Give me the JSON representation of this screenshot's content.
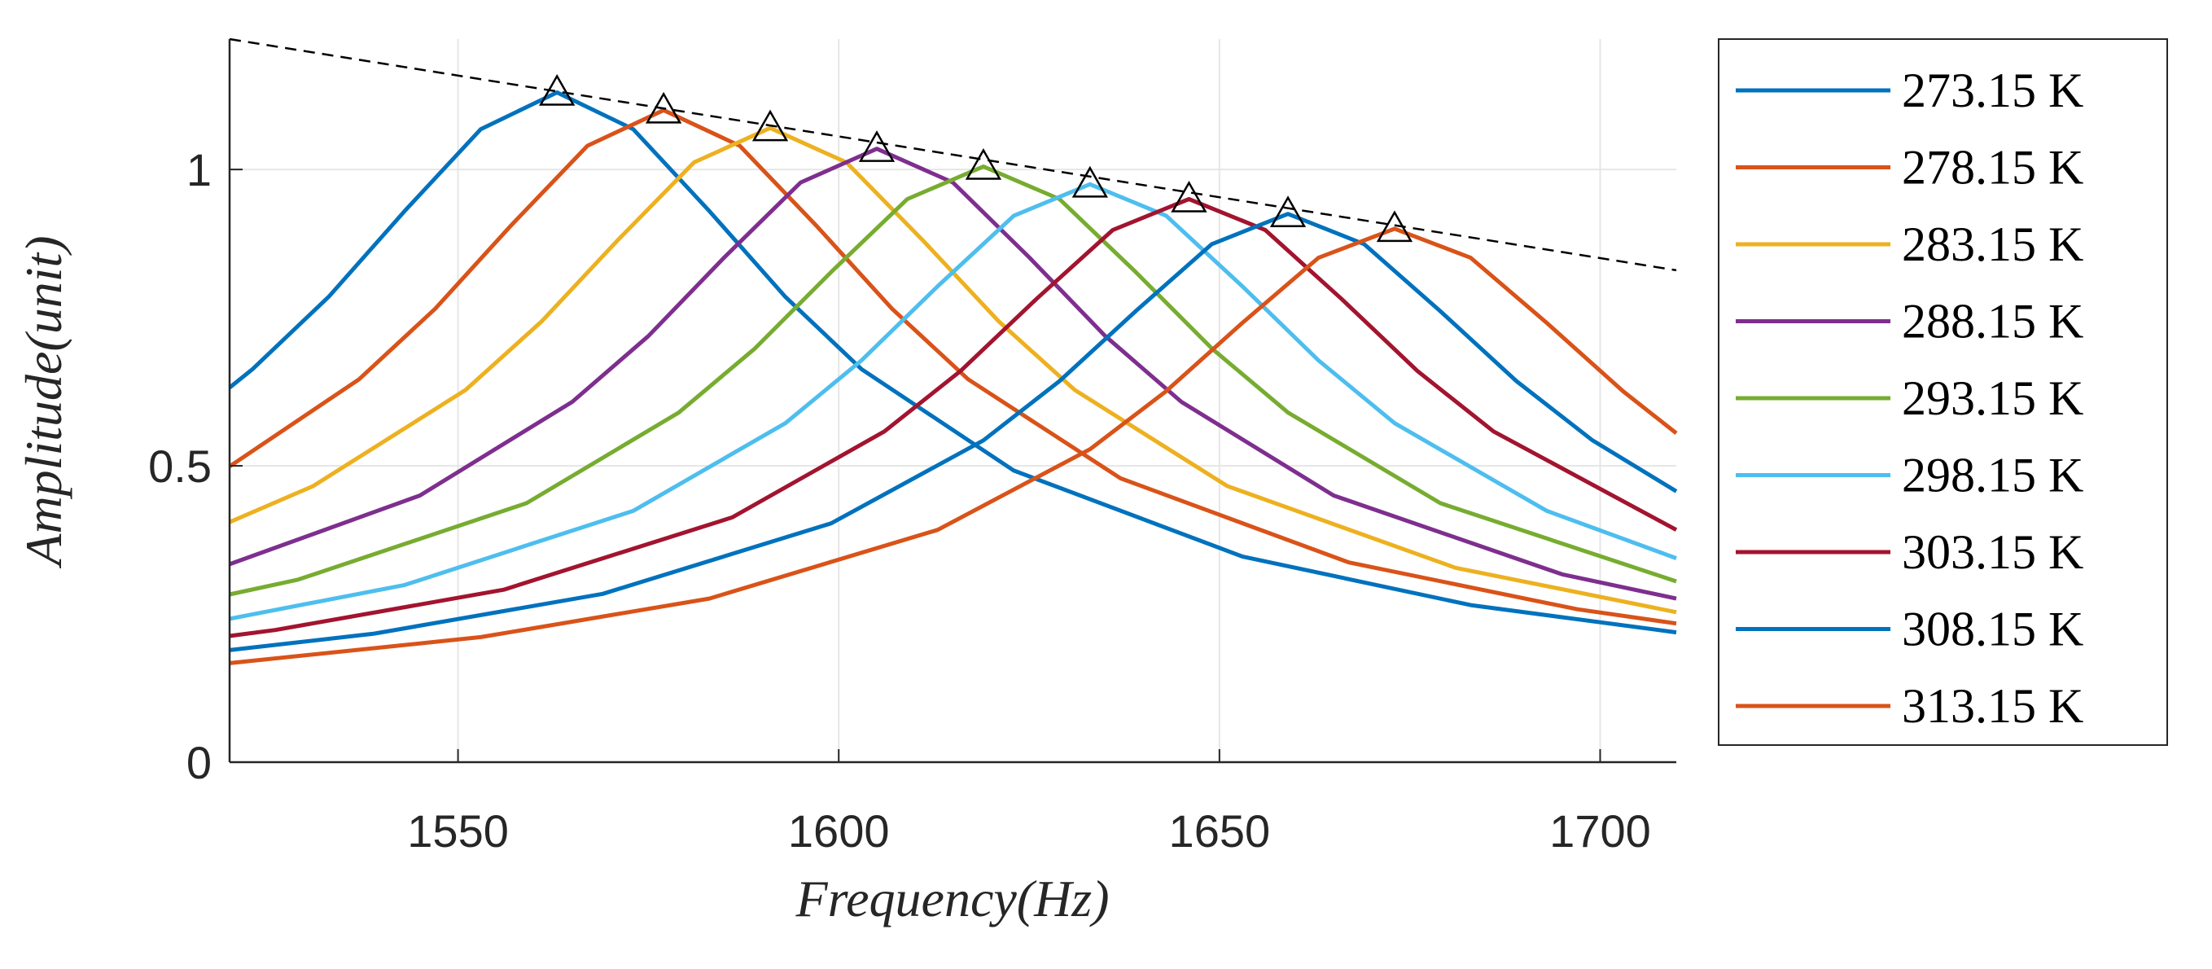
{
  "chart_data": {
    "type": "line",
    "x_label": "Frequency(Hz)",
    "y_label": "Amplitude(unit)",
    "xlim": [
      1520,
      1710
    ],
    "xticks": [
      1550,
      1600,
      1650,
      1700
    ],
    "ylim": [
      0,
      1.22
    ],
    "yticks": [
      0,
      0.5,
      1
    ],
    "grid": true,
    "legend": "outside-right",
    "series": [
      {
        "name": "273.15 K",
        "color": "#0072BD",
        "x": [
          1520,
          1523,
          1533,
          1543,
          1553,
          1563,
          1573,
          1583,
          1593,
          1603,
          1623,
          1653,
          1683,
          1710
        ],
        "values": [
          0.632,
          0.663,
          0.785,
          0.93,
          1.068,
          1.13,
          1.068,
          0.93,
          0.785,
          0.663,
          0.492,
          0.347,
          0.265,
          0.219
        ]
      },
      {
        "name": "278.15 K",
        "color": "#D95319",
        "x": [
          1520,
          1537,
          1547,
          1557,
          1567,
          1577,
          1587,
          1597,
          1607,
          1617,
          1637,
          1667,
          1697,
          1710
        ],
        "values": [
          0.499,
          0.646,
          0.765,
          0.906,
          1.04,
          1.1,
          1.04,
          0.906,
          0.765,
          0.646,
          0.479,
          0.337,
          0.258,
          0.234
        ]
      },
      {
        "name": "283.15 K",
        "color": "#EDB120",
        "x": [
          1520,
          1531,
          1551,
          1561,
          1571,
          1581,
          1591,
          1601,
          1611,
          1621,
          1631,
          1651,
          1681,
          1710
        ],
        "values": [
          0.405,
          0.466,
          0.628,
          0.744,
          0.881,
          1.012,
          1.07,
          1.012,
          0.881,
          0.744,
          0.628,
          0.466,
          0.328,
          0.253
        ]
      },
      {
        "name": "288.15 K",
        "color": "#7E2F8E",
        "x": [
          1520,
          1545,
          1565,
          1575,
          1585,
          1595,
          1605,
          1615,
          1625,
          1635,
          1645,
          1665,
          1695,
          1710
        ],
        "values": [
          0.334,
          0.45,
          0.608,
          0.719,
          0.852,
          0.978,
          1.035,
          0.978,
          0.852,
          0.719,
          0.608,
          0.45,
          0.317,
          0.276
        ]
      },
      {
        "name": "293.15 K",
        "color": "#77AC30",
        "x": [
          1520,
          1529,
          1559,
          1579,
          1589,
          1599,
          1609,
          1619,
          1629,
          1639,
          1649,
          1659,
          1679,
          1710
        ],
        "values": [
          0.283,
          0.308,
          0.437,
          0.59,
          0.698,
          0.827,
          0.95,
          1.005,
          0.95,
          0.827,
          0.698,
          0.59,
          0.437,
          0.305
        ]
      },
      {
        "name": "298.15 K",
        "color": "#4DBEEE",
        "x": [
          1520,
          1543,
          1573,
          1593,
          1603,
          1613,
          1623,
          1633,
          1643,
          1653,
          1663,
          1673,
          1693,
          1710
        ],
        "values": [
          0.242,
          0.299,
          0.424,
          0.572,
          0.678,
          0.803,
          0.922,
          0.975,
          0.922,
          0.803,
          0.678,
          0.572,
          0.424,
          0.344
        ]
      },
      {
        "name": "303.15 K",
        "color": "#A2142F",
        "x": [
          1520,
          1526,
          1556,
          1586,
          1606,
          1616,
          1626,
          1636,
          1646,
          1656,
          1666,
          1676,
          1686,
          1710
        ],
        "values": [
          0.213,
          0.223,
          0.291,
          0.413,
          0.558,
          0.66,
          0.782,
          0.898,
          0.95,
          0.898,
          0.782,
          0.66,
          0.558,
          0.392
        ]
      },
      {
        "name": "308.15 K",
        "color": "#0072BD",
        "x": [
          1520,
          1539,
          1569,
          1599,
          1619,
          1629,
          1639,
          1649,
          1659,
          1669,
          1679,
          1689,
          1699,
          1710
        ],
        "values": [
          0.189,
          0.217,
          0.284,
          0.403,
          0.543,
          0.643,
          0.761,
          0.874,
          0.925,
          0.874,
          0.761,
          0.643,
          0.543,
          0.457
        ]
      },
      {
        "name": "313.15 K",
        "color": "#D95319",
        "x": [
          1520,
          1553,
          1583,
          1613,
          1633,
          1643,
          1653,
          1663,
          1673,
          1683,
          1693,
          1703,
          1710
        ],
        "values": [
          0.167,
          0.211,
          0.276,
          0.392,
          0.528,
          0.626,
          0.741,
          0.851,
          0.9,
          0.851,
          0.741,
          0.626,
          0.555
        ]
      }
    ],
    "peaks": {
      "x": [
        1563,
        1577,
        1591,
        1605,
        1619,
        1633,
        1646,
        1659,
        1673
      ],
      "values": [
        1.13,
        1.1,
        1.07,
        1.035,
        1.005,
        0.975,
        0.95,
        0.925,
        0.9
      ],
      "color": "#000000"
    },
    "envelope": {
      "x": [
        1520,
        1710
      ],
      "values": [
        1.22,
        0.83
      ],
      "color": "#000000",
      "style": "dashed"
    }
  }
}
